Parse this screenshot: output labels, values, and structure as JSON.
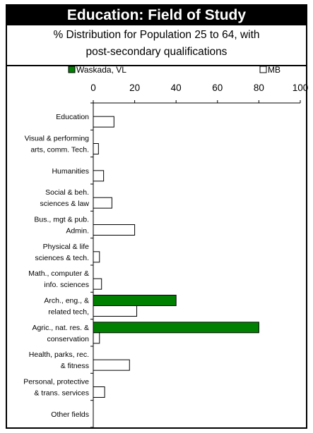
{
  "header": {
    "title": "Education: Field of Study",
    "subtitle_line1": "% Distribution for Population 25 to 64, with",
    "subtitle_line2": "post-secondary qualifications"
  },
  "chart_data": {
    "type": "bar",
    "orientation": "horizontal",
    "title": "Education: Field of Study",
    "subtitle": "% Distribution for Population 25 to 64, with post-secondary qualifications",
    "xlim": [
      0,
      100
    ],
    "xticks": [
      0,
      20,
      40,
      60,
      80,
      100
    ],
    "legend_position": "top",
    "grid": false,
    "categories": [
      [
        "Education"
      ],
      [
        "Visual & performing",
        "arts, comm. Tech."
      ],
      [
        "Humanities"
      ],
      [
        "Social & beh.",
        "sciences & law"
      ],
      [
        "Bus., mgt & pub.",
        "Admin."
      ],
      [
        "Physical & life",
        "sciences & tech."
      ],
      [
        "Math., computer &",
        "info. sciences"
      ],
      [
        "Arch., eng., &",
        "related tech,"
      ],
      [
        "Agric., nat. res. &",
        "conservation"
      ],
      [
        "Health, parks, rec.",
        "& fitness"
      ],
      [
        "Personal, protective",
        "& trans. services"
      ],
      [
        "Other fields"
      ]
    ],
    "series": [
      {
        "name": "Waskada, VL",
        "color": "#008000",
        "values": [
          0,
          0,
          0,
          0,
          0,
          0,
          0,
          40,
          80,
          0,
          0,
          0
        ]
      },
      {
        "name": "MB",
        "color": "#ffffff",
        "values": [
          10,
          2.5,
          5,
          9,
          20,
          3,
          4,
          21,
          3,
          17.5,
          5.5,
          0
        ]
      }
    ]
  }
}
